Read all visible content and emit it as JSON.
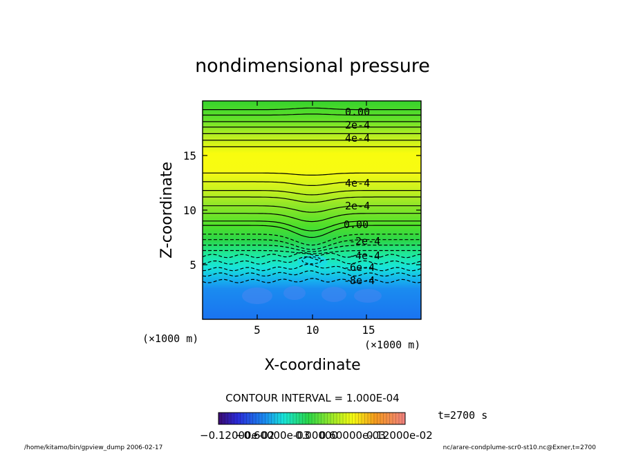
{
  "chart_data": {
    "type": "heatmap",
    "title": "nondimensional pressure",
    "xlabel": "X-coordinate",
    "ylabel": "Z-coordinate",
    "x_unit": "(×1000 m)",
    "y_unit": "(×1000 m)",
    "xlim": [
      0,
      20
    ],
    "ylim": [
      0,
      20
    ],
    "x_ticks": [
      "5",
      "10",
      "15"
    ],
    "y_ticks": [
      "5",
      "10",
      "15"
    ],
    "contour_interval_label": "CONTOUR INTERVAL = 1.000E-04",
    "time_label": "t=2700 s",
    "colorbar_labels": [
      "−0.12000e-02",
      "−0.60000e-03",
      "0.00000",
      "0.60000e-03",
      "0.12000e-02"
    ],
    "colorbar_range": [
      -0.0012,
      0.0012
    ],
    "contour_labels": [
      {
        "text": "0.00",
        "z": 18.9,
        "x": 14.0
      },
      {
        "text": "2e-4",
        "z": 17.7,
        "x": 14.0
      },
      {
        "text": "4e-4",
        "z": 16.5,
        "x": 14.0
      },
      {
        "text": "4e-4",
        "z": 12.4,
        "x": 14.0
      },
      {
        "text": "2e-4",
        "z": 10.3,
        "x": 14.0
      },
      {
        "text": "0.00",
        "z": 8.6,
        "x": 14.0
      },
      {
        "text": "-2e-4",
        "z": 7.1,
        "x": 14.5
      },
      {
        "text": "-4e-4",
        "z": 5.8,
        "x": 14.5
      },
      {
        "text": "-6e-4",
        "z": 4.7,
        "x": 14.0
      },
      {
        "text": "-8e-4",
        "z": 3.5,
        "x": 14.0
      }
    ],
    "grid": false
  },
  "footer": {
    "left": "/home/kitamo/bin/gpview_dump  2006-02-17",
    "right": "nc/arare-condplume-scr0-st10.nc@Exner,t=2700"
  },
  "colors": {
    "low": "#0a4bff",
    "zero": "#39e62a",
    "high": "#ffff00"
  }
}
